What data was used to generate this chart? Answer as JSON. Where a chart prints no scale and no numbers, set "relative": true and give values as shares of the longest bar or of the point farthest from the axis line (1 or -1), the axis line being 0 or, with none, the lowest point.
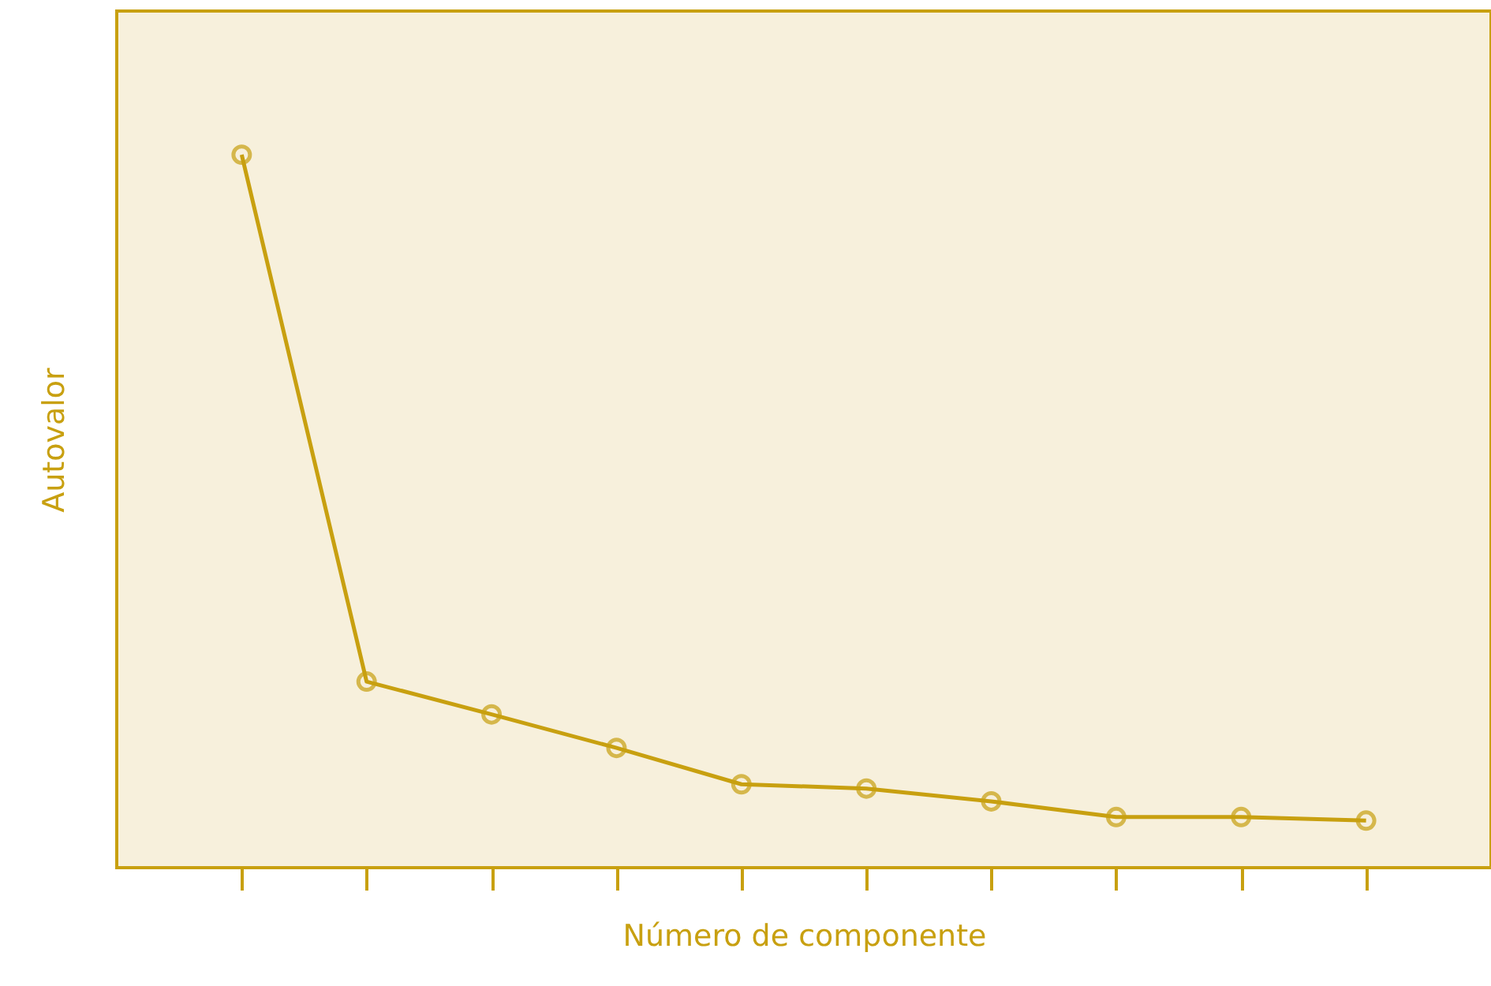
{
  "chart_data": {
    "type": "line",
    "xlabel": "Número de componente",
    "ylabel": "Autovalor",
    "relative": true,
    "marker": "circle",
    "line_style": "solid",
    "grid": false,
    "categories": [
      null,
      null,
      null,
      null,
      null,
      null,
      null,
      null,
      null,
      null
    ],
    "series": [
      {
        "color": "#c8a010",
        "values": [
          1.0,
          0.261,
          0.215,
          0.168,
          0.117,
          0.111,
          0.093,
          0.071,
          0.071,
          0.066
        ]
      }
    ]
  }
}
